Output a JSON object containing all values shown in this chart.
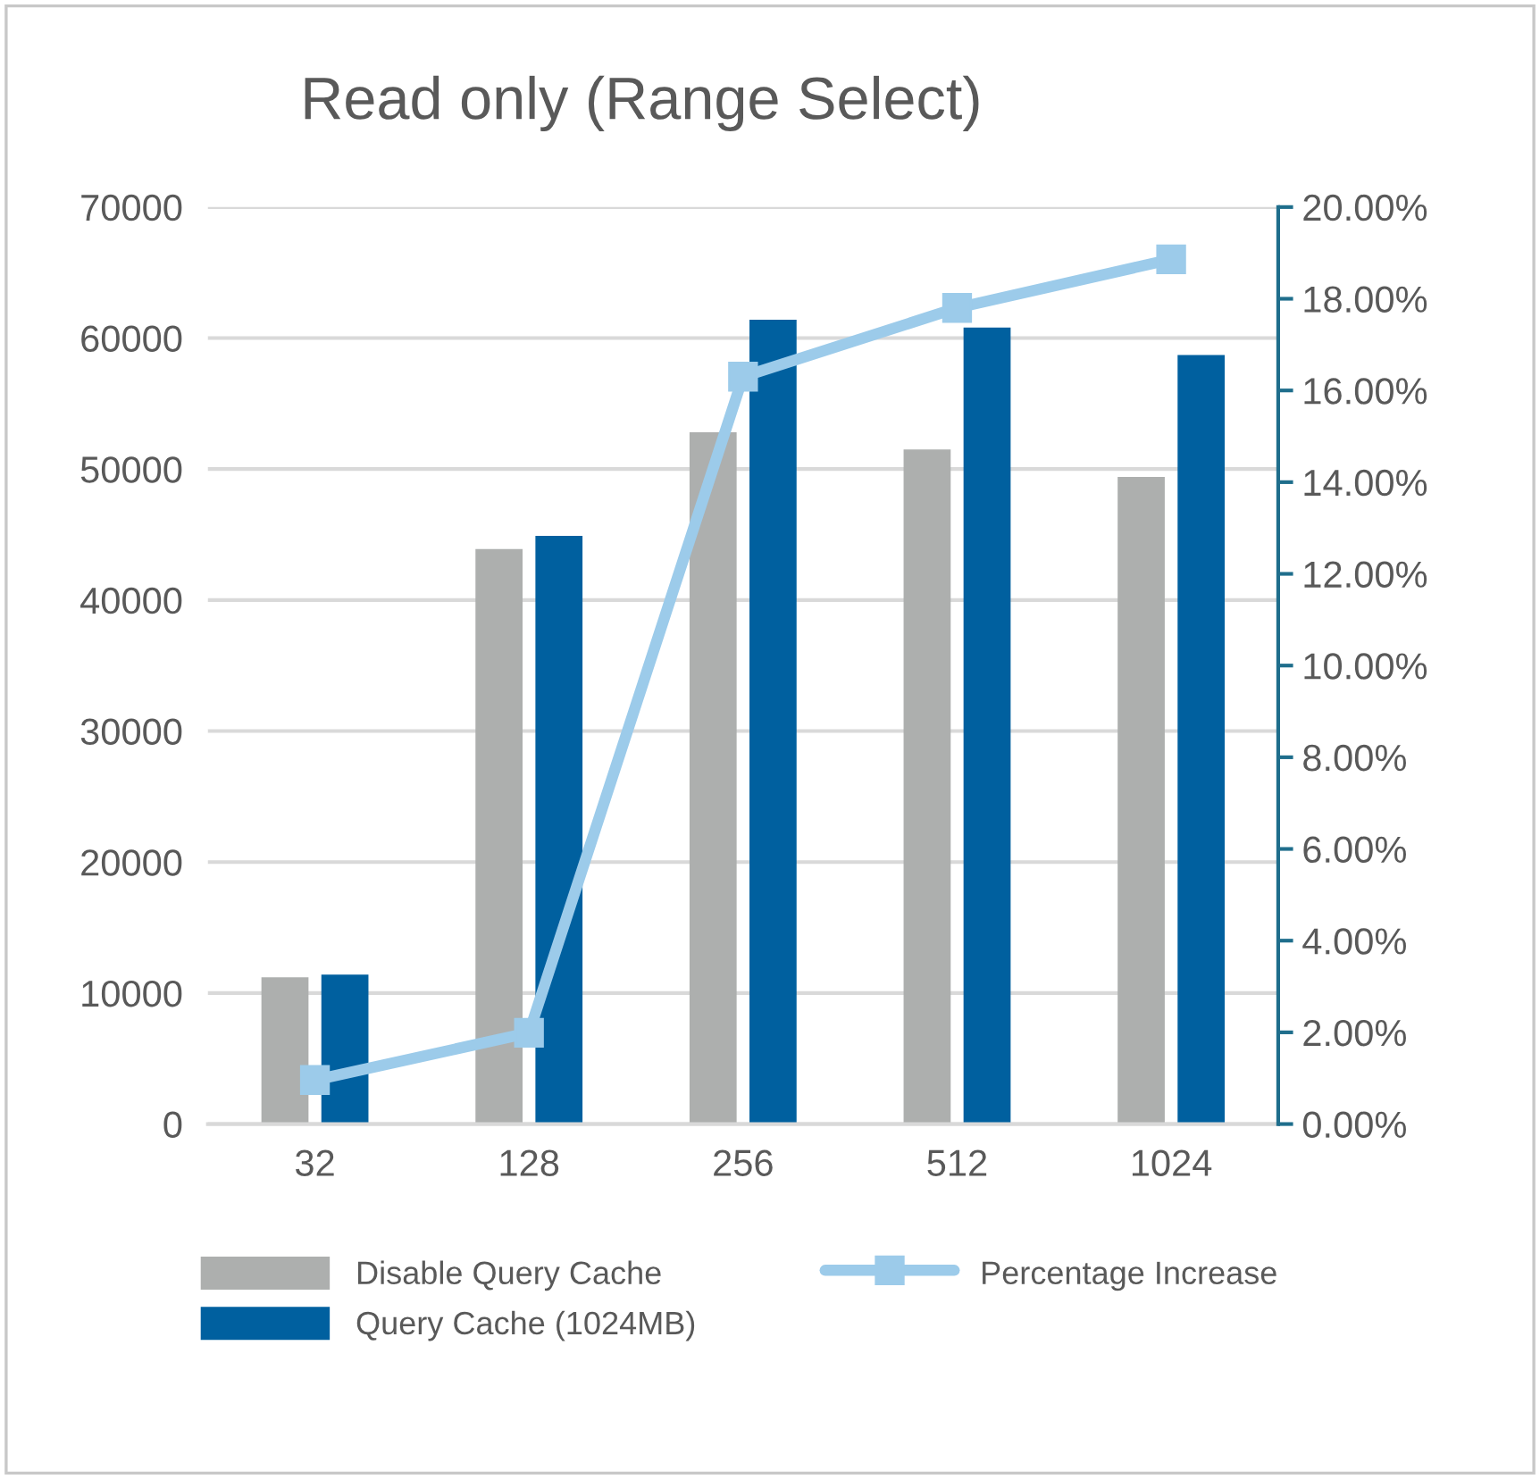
{
  "chart_data": {
    "type": "bar",
    "title": "Read only (Range Select)",
    "categories": [
      "32",
      "128",
      "256",
      "512",
      "1024"
    ],
    "series": [
      {
        "name": "Disable Query Cache",
        "color": "#adafae",
        "values": [
          11200,
          43900,
          52800,
          51500,
          49400
        ]
      },
      {
        "name": "Query Cache (1024MB)",
        "color": "#00609f",
        "values": [
          11400,
          44900,
          61400,
          60800,
          58700
        ]
      },
      {
        "name": "Percentage Increase",
        "type": "line",
        "axis": "y2",
        "color": "#9ccbea",
        "marker": "square",
        "values": [
          0.96,
          1.99,
          16.3,
          17.8,
          18.86
        ]
      }
    ],
    "ylim": [
      0,
      70000
    ],
    "yticks": [
      0,
      10000,
      20000,
      30000,
      40000,
      50000,
      60000,
      70000
    ],
    "y2lim": [
      0,
      20
    ],
    "y2ticks": [
      {
        "value": 0,
        "label": "0.00%"
      },
      {
        "value": 2,
        "label": "2.00%"
      },
      {
        "value": 4,
        "label": "4.00%"
      },
      {
        "value": 6,
        "label": "6.00%"
      },
      {
        "value": 8,
        "label": "8.00%"
      },
      {
        "value": 10,
        "label": "10.00%"
      },
      {
        "value": 12,
        "label": "12.00%"
      },
      {
        "value": 14,
        "label": "14.00%"
      },
      {
        "value": 16,
        "label": "16.00%"
      },
      {
        "value": 18,
        "label": "18.00%"
      },
      {
        "value": 20,
        "label": "20.00%"
      }
    ],
    "grid": "y",
    "legend": "bottom"
  }
}
